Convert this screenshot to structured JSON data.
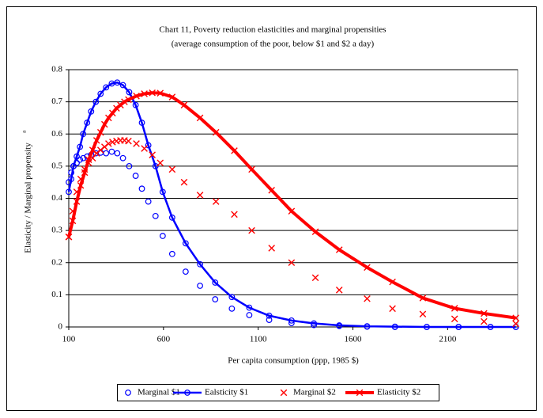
{
  "chart_data": {
    "type": "line",
    "title": "Chart 11,  Poverty reduction elasticities and marginal propensities",
    "subtitle": "(average consumption of the poor, below $1 and $2 a day)",
    "x_label": "Per capita consumption (ppp, 1985 $)",
    "y_label": "Elasticity / Marginal propensity",
    "y_label_note": "a",
    "xlim": [
      100,
      2470
    ],
    "ylim": [
      0,
      0.8
    ],
    "xticks": [
      100,
      600,
      1100,
      1600,
      2100
    ],
    "yticks": [
      0,
      0.1,
      0.2,
      0.3,
      0.4,
      0.5,
      0.6,
      0.7,
      0.8
    ],
    "grid": true,
    "legend": "bottom",
    "series": [
      {
        "name": "Marginal $1",
        "color": "#0000ff",
        "style": "markers",
        "marker": "circle",
        "x": [
          100,
          113,
          125,
          142,
          159,
          176,
          197,
          218,
          243,
          268,
          297,
          327,
          356,
          386,
          419,
          453,
          486,
          520,
          558,
          596,
          646,
          717,
          793,
          873,
          961,
          1053,
          1158,
          1276,
          1394,
          1528,
          1675,
          1822,
          1990,
          2158,
          2326,
          2460
        ],
        "values": [
          0.45,
          0.48,
          0.5,
          0.51,
          0.52,
          0.525,
          0.53,
          0.535,
          0.54,
          0.542,
          0.54,
          0.545,
          0.54,
          0.525,
          0.5,
          0.47,
          0.43,
          0.39,
          0.345,
          0.283,
          0.227,
          0.172,
          0.128,
          0.086,
          0.057,
          0.037,
          0.022,
          0.012,
          0.006,
          0.003,
          0.001,
          0,
          0,
          0,
          0,
          0
        ]
      },
      {
        "name": "Ealsticity $1",
        "color": "#0000ff",
        "style": "line",
        "marker": "circle",
        "x": [
          100,
          113,
          125,
          142,
          159,
          176,
          197,
          218,
          243,
          268,
          297,
          327,
          356,
          386,
          419,
          453,
          486,
          520,
          558,
          596,
          646,
          717,
          793,
          873,
          961,
          1053,
          1158,
          1276,
          1394,
          1528,
          1675,
          1822,
          1990,
          2158,
          2326,
          2460
        ],
        "values": [
          0.42,
          0.46,
          0.5,
          0.53,
          0.56,
          0.6,
          0.635,
          0.67,
          0.7,
          0.725,
          0.745,
          0.757,
          0.76,
          0.752,
          0.73,
          0.69,
          0.635,
          0.565,
          0.5,
          0.42,
          0.34,
          0.26,
          0.195,
          0.138,
          0.093,
          0.06,
          0.035,
          0.02,
          0.011,
          0.005,
          0.002,
          0.001,
          0,
          0,
          0,
          0
        ]
      },
      {
        "name": "Marginal $2",
        "color": "#ff0000",
        "style": "markers",
        "marker": "x",
        "x": [
          100,
          121,
          142,
          163,
          184,
          205,
          226,
          247,
          268,
          289,
          310,
          331,
          352,
          373,
          394,
          415,
          457,
          499,
          541,
          583,
          646,
          709,
          793,
          877,
          974,
          1066,
          1171,
          1276,
          1402,
          1528,
          1675,
          1809,
          1969,
          2137,
          2292,
          2460
        ],
        "values": [
          0.28,
          0.36,
          0.42,
          0.46,
          0.49,
          0.51,
          0.525,
          0.54,
          0.55,
          0.56,
          0.57,
          0.575,
          0.578,
          0.58,
          0.58,
          0.578,
          0.57,
          0.555,
          0.535,
          0.51,
          0.49,
          0.45,
          0.41,
          0.39,
          0.35,
          0.3,
          0.245,
          0.2,
          0.153,
          0.115,
          0.088,
          0.057,
          0.04,
          0.025,
          0.017,
          0.01
        ]
      },
      {
        "name": "Elasticity $2",
        "color": "#ff0000",
        "style": "line",
        "marker": "x",
        "x": [
          100,
          121,
          142,
          163,
          184,
          205,
          226,
          247,
          268,
          289,
          310,
          331,
          352,
          373,
          394,
          415,
          457,
          499,
          541,
          583,
          646,
          709,
          793,
          877,
          974,
          1066,
          1171,
          1276,
          1402,
          1528,
          1675,
          1809,
          1969,
          2137,
          2292,
          2460
        ],
        "values": [
          0.28,
          0.33,
          0.39,
          0.44,
          0.48,
          0.52,
          0.55,
          0.58,
          0.605,
          0.63,
          0.65,
          0.665,
          0.68,
          0.69,
          0.7,
          0.707,
          0.718,
          0.725,
          0.728,
          0.727,
          0.715,
          0.69,
          0.65,
          0.605,
          0.548,
          0.49,
          0.425,
          0.36,
          0.296,
          0.24,
          0.185,
          0.14,
          0.09,
          0.058,
          0.042,
          0.028
        ]
      }
    ]
  }
}
